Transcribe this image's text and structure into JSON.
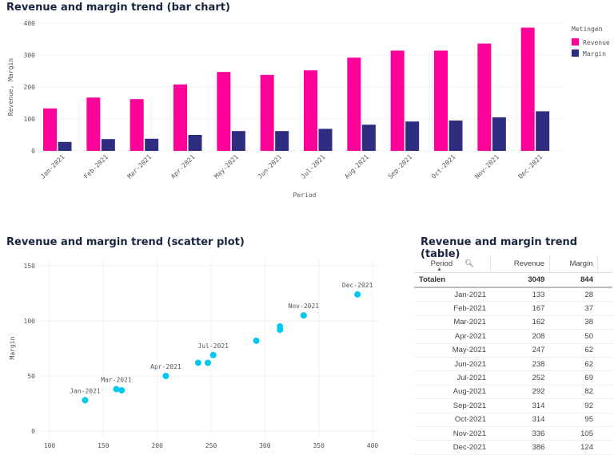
{
  "chart_data": [
    {
      "type": "bar",
      "title": "Revenue and margin trend (bar chart)",
      "xlabel": "Period",
      "ylabel": "Revenue, Margin",
      "ylim": [
        0,
        400
      ],
      "yticks": [
        0,
        100,
        200,
        300,
        400
      ],
      "grid": true,
      "legend": {
        "title": "Metingen",
        "placement": "right"
      },
      "categories": [
        "Jan-2021",
        "Feb-2021",
        "Mar-2021",
        "Apr-2021",
        "May-2021",
        "Jun-2021",
        "Jul-2021",
        "Aug-2021",
        "Sep-2021",
        "Oct-2021",
        "Nov-2021",
        "Dec-2021"
      ],
      "series": [
        {
          "name": "Revenue",
          "color": "#ff0099",
          "values": [
            133,
            167,
            162,
            208,
            247,
            238,
            252,
            292,
            314,
            314,
            336,
            386
          ]
        },
        {
          "name": "Margin",
          "color": "#2e2d82",
          "values": [
            28,
            37,
            38,
            50,
            62,
            62,
            69,
            82,
            92,
            95,
            105,
            124
          ]
        }
      ]
    },
    {
      "type": "scatter",
      "title": "Revenue and margin trend (scatter plot)",
      "xlabel": "",
      "ylabel": "Margin",
      "xlim": [
        100,
        400
      ],
      "ylim": [
        0,
        150
      ],
      "xticks": [
        100,
        150,
        200,
        250,
        300,
        350,
        400
      ],
      "yticks": [
        0,
        50,
        100,
        150
      ],
      "color": "#00c8f0",
      "points": [
        {
          "x": 133,
          "y": 28,
          "label": "Jan-2021"
        },
        {
          "x": 167,
          "y": 37,
          "label": ""
        },
        {
          "x": 162,
          "y": 38,
          "label": "Mar-2021"
        },
        {
          "x": 208,
          "y": 50,
          "label": "Apr-2021"
        },
        {
          "x": 247,
          "y": 62,
          "label": ""
        },
        {
          "x": 238,
          "y": 62,
          "label": ""
        },
        {
          "x": 252,
          "y": 69,
          "label": "Jul-2021"
        },
        {
          "x": 292,
          "y": 82,
          "label": ""
        },
        {
          "x": 314,
          "y": 92,
          "label": ""
        },
        {
          "x": 314,
          "y": 95,
          "label": ""
        },
        {
          "x": 336,
          "y": 105,
          "label": "Nov-2021"
        },
        {
          "x": 386,
          "y": 124,
          "label": "Dec-2021"
        }
      ]
    },
    {
      "type": "table",
      "title": "Revenue and margin trend (table)",
      "columns": [
        "Period",
        "Revenue",
        "Margin"
      ],
      "totals_label": "Totalen",
      "totals": [
        3049,
        844
      ],
      "rows": [
        [
          "Jan-2021",
          133,
          28
        ],
        [
          "Feb-2021",
          167,
          37
        ],
        [
          "Mar-2021",
          162,
          38
        ],
        [
          "Apr-2021",
          208,
          50
        ],
        [
          "May-2021",
          247,
          62
        ],
        [
          "Jun-2021",
          238,
          62
        ],
        [
          "Jul-2021",
          252,
          69
        ],
        [
          "Aug-2021",
          292,
          82
        ],
        [
          "Sep-2021",
          314,
          92
        ],
        [
          "Oct-2021",
          314,
          95
        ],
        [
          "Nov-2021",
          336,
          105
        ],
        [
          "Dec-2021",
          386,
          124
        ]
      ]
    }
  ]
}
